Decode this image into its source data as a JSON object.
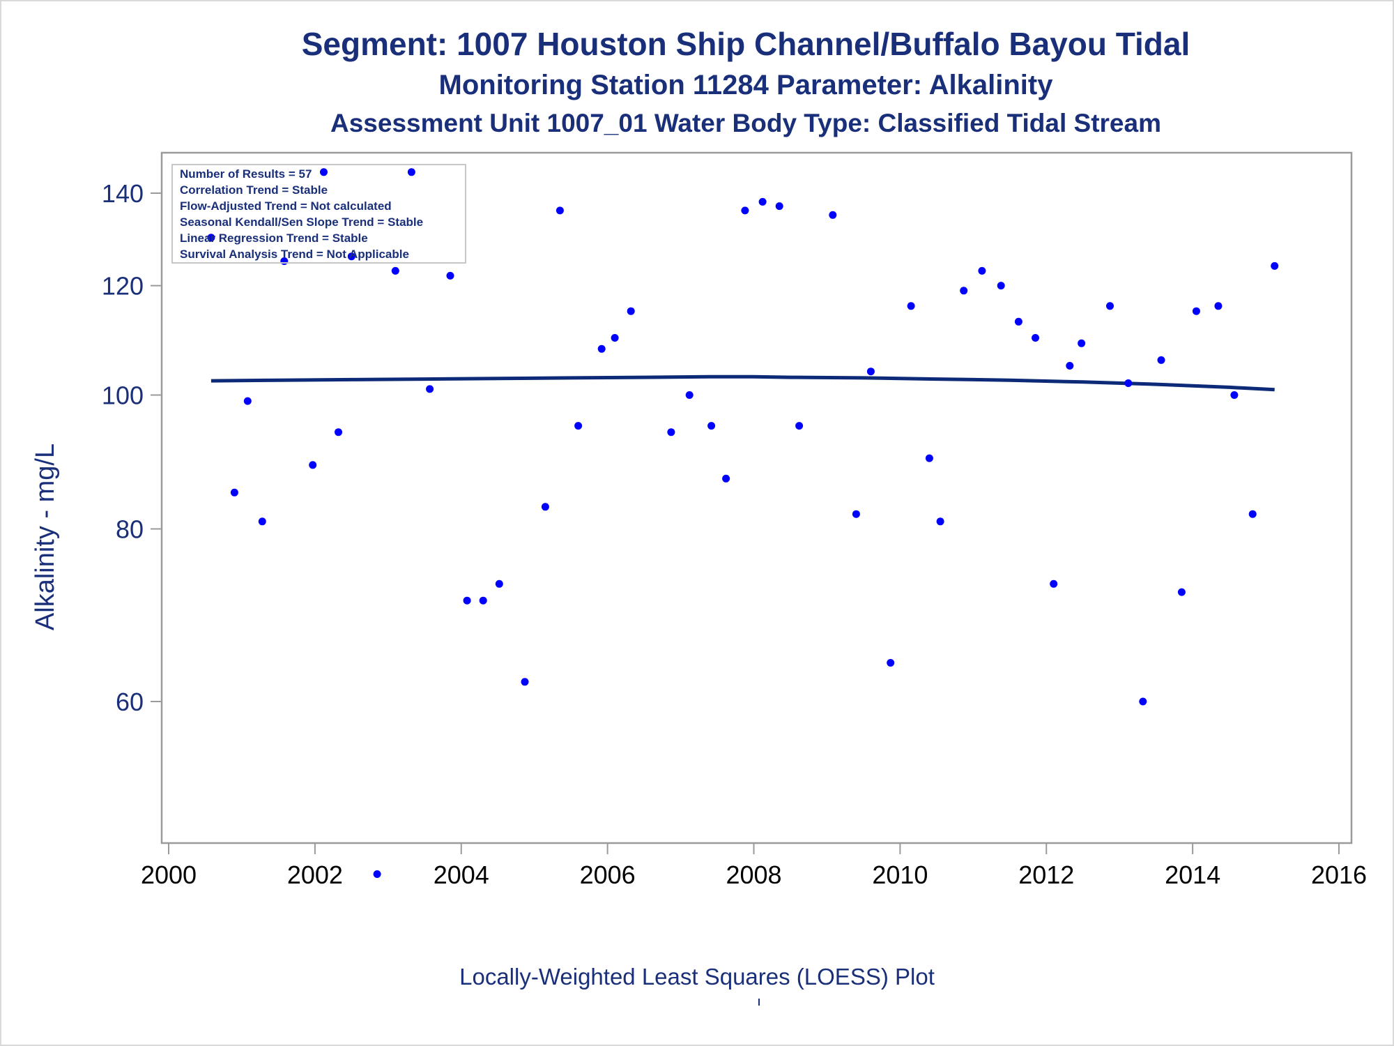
{
  "chart_data": {
    "type": "scatter",
    "title": "Segment: 1007  Houston Ship Channel/Buffalo Bayou Tidal",
    "subtitle": "Monitoring Station 11284 Parameter: Alkalinity",
    "subtitle2": "Assessment Unit 1007_01   Water Body Type: Classified Tidal Stream",
    "ylabel": "Alkalinity - mg/L",
    "xlabel": "",
    "caption": "Locally-Weighted Least Squares (LOESS) Plot",
    "xlim": [
      2000,
      2016
    ],
    "ylim": [
      42,
      146
    ],
    "y_scale": "log",
    "xticks": [
      2000,
      2002,
      2004,
      2006,
      2008,
      2010,
      2012,
      2014,
      2016
    ],
    "yticks": [
      60,
      80,
      100,
      120,
      140
    ],
    "grid": false,
    "colors": {
      "points": "#0000ff",
      "line": "#0d2a78",
      "text": "#1a2f7a",
      "axis": "#9a9a9a"
    },
    "stats_box": {
      "placement": "top-left",
      "lines": [
        "Number of Results = 57",
        "Correlation Trend = Stable",
        "Flow-Adjusted Trend = Not calculated",
        "Seasonal Kendall/Sen Slope Trend = Stable",
        "Linear Regression Trend = Stable",
        "Survival Analysis Trend = Not Applicable"
      ]
    },
    "series": [
      {
        "type": "scatter",
        "points": [
          [
            2000.58,
            130
          ],
          [
            2000.9,
            85
          ],
          [
            2001.08,
            99
          ],
          [
            2001.28,
            81
          ],
          [
            2001.58,
            125
          ],
          [
            2001.97,
            89
          ],
          [
            2002.12,
            145
          ],
          [
            2002.32,
            94
          ],
          [
            2002.5,
            126
          ],
          [
            2002.85,
            45
          ],
          [
            2003.1,
            123
          ],
          [
            2003.32,
            145
          ],
          [
            2003.57,
            101
          ],
          [
            2003.85,
            122
          ],
          [
            2004.08,
            71
          ],
          [
            2004.3,
            71
          ],
          [
            2004.52,
            73
          ],
          [
            2004.87,
            62
          ],
          [
            2005.15,
            83
          ],
          [
            2005.35,
            136
          ],
          [
            2005.6,
            95
          ],
          [
            2005.92,
            108
          ],
          [
            2006.1,
            110
          ],
          [
            2006.32,
            115
          ],
          [
            2006.87,
            94
          ],
          [
            2007.12,
            100
          ],
          [
            2007.42,
            95
          ],
          [
            2007.62,
            87
          ],
          [
            2007.88,
            136
          ],
          [
            2008.12,
            138
          ],
          [
            2008.35,
            137
          ],
          [
            2008.62,
            95
          ],
          [
            2009.08,
            135
          ],
          [
            2009.4,
            82
          ],
          [
            2009.6,
            104
          ],
          [
            2009.87,
            64
          ],
          [
            2010.15,
            116
          ],
          [
            2010.4,
            90
          ],
          [
            2010.55,
            81
          ],
          [
            2010.87,
            119
          ],
          [
            2011.12,
            123
          ],
          [
            2011.38,
            120
          ],
          [
            2011.62,
            113
          ],
          [
            2011.85,
            110
          ],
          [
            2012.1,
            73
          ],
          [
            2012.32,
            105
          ],
          [
            2012.48,
            109
          ],
          [
            2012.87,
            116
          ],
          [
            2013.12,
            102
          ],
          [
            2013.32,
            60
          ],
          [
            2013.57,
            106
          ],
          [
            2013.85,
            72
          ],
          [
            2014.05,
            115
          ],
          [
            2014.35,
            116
          ],
          [
            2014.57,
            100
          ],
          [
            2014.82,
            82
          ],
          [
            2015.12,
            124
          ]
        ]
      },
      {
        "type": "line",
        "points": [
          [
            2000.58,
            102.4
          ],
          [
            2001.5,
            102.5
          ],
          [
            2002.5,
            102.6
          ],
          [
            2003.5,
            102.7
          ],
          [
            2004.5,
            102.8
          ],
          [
            2005.5,
            102.9
          ],
          [
            2006.5,
            103.0
          ],
          [
            2007.5,
            103.1
          ],
          [
            2008.0,
            103.1
          ],
          [
            2008.5,
            103.0
          ],
          [
            2009.5,
            102.9
          ],
          [
            2010.5,
            102.7
          ],
          [
            2011.5,
            102.5
          ],
          [
            2012.5,
            102.2
          ],
          [
            2013.5,
            101.8
          ],
          [
            2014.5,
            101.3
          ],
          [
            2015.12,
            100.9
          ]
        ]
      }
    ]
  }
}
